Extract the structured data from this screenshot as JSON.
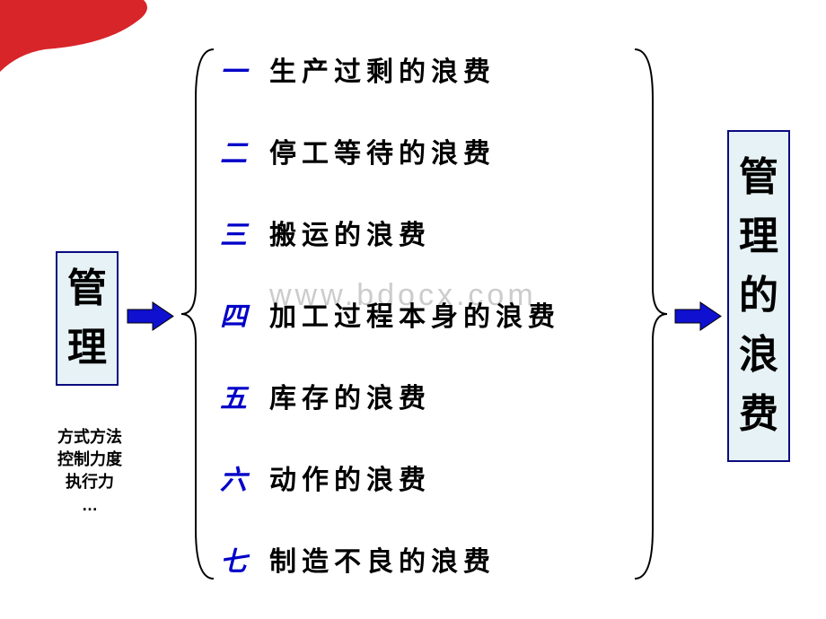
{
  "colors": {
    "red": "#d8252a",
    "blue": "#0000c8",
    "blueFill": "#1010d0",
    "boxBorder": "#0a0a80",
    "boxFill": "#e6f2f5",
    "black": "#000000",
    "watermark": "#cccccc"
  },
  "leftBox": {
    "chars": [
      "管",
      "理"
    ],
    "fontSize": 44
  },
  "leftSub": {
    "lines": [
      "方式方法",
      "控制力度",
      "执行力",
      "…"
    ],
    "fontSize": 18
  },
  "centerItems": [
    {
      "num": "一",
      "text": "生产过剩的浪费"
    },
    {
      "num": "二",
      "text": "停工等待的浪费"
    },
    {
      "num": "三",
      "text": "搬运的浪费"
    },
    {
      "num": "四",
      "text": "加工过程本身的浪费"
    },
    {
      "num": "五",
      "text": "库存的浪费"
    },
    {
      "num": "六",
      "text": "动作的浪费"
    },
    {
      "num": "七",
      "text": "制造不良的浪费"
    }
  ],
  "rightBox": {
    "chars": [
      "管",
      "理",
      "的",
      "浪",
      "费"
    ],
    "fontSize": 44
  },
  "watermark": "www.bdocx.com",
  "bracket": {
    "stroke": "#000000",
    "width": 2
  },
  "arrow": {
    "fill": "#1010d0",
    "stroke": "#000000"
  }
}
